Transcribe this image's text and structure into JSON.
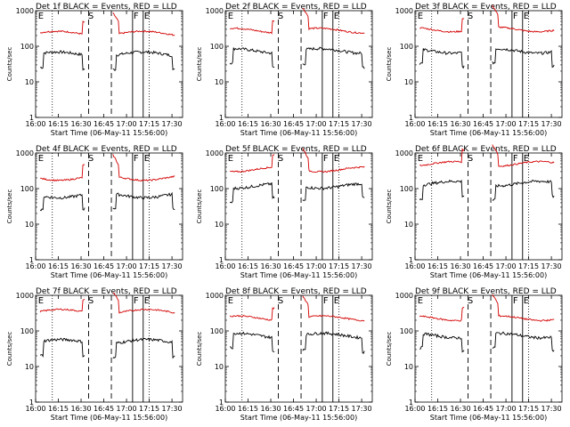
{
  "figure": {
    "start_time_label": "Start Time (06-May-11 15:56:00)",
    "ylabel": "Counts/sec"
  },
  "style": {
    "events_color": "#000000",
    "lld_color": "#d40000",
    "background": "#ffffff"
  },
  "chart_data": [
    {
      "type": "line",
      "title": "Det 1f BLACK = Events, RED = LLD",
      "xlabel": "Start Time (06-May-11 15:56:00)",
      "ylabel": "Counts/sec",
      "yscale": "log",
      "ylim": [
        1,
        1000
      ],
      "x_ticks": [
        "16:00",
        "16:15",
        "16:30",
        "16:45",
        "17:00",
        "17:15",
        "17:30"
      ],
      "y_ticks": [
        "1",
        "10",
        "100",
        "1000"
      ],
      "markers": [
        "E",
        "S",
        "F",
        "E"
      ],
      "series": [
        {
          "name": "Events",
          "level": 60
        },
        {
          "name": "LLD",
          "level": 230
        }
      ]
    },
    {
      "type": "line",
      "title": "Det 2f BLACK = Events, RED = LLD",
      "xlabel": "Start Time (06-May-11 15:56:00)",
      "ylabel": "Counts/sec",
      "yscale": "log",
      "ylim": [
        1,
        1000
      ],
      "x_ticks": [
        "16:00",
        "16:15",
        "16:30",
        "16:45",
        "17:00",
        "17:15",
        "17:30"
      ],
      "y_ticks": [
        "1",
        "10",
        "100",
        "1000"
      ],
      "markers": [
        "E",
        "S",
        "F",
        "E"
      ],
      "series": [
        {
          "name": "Events",
          "level": 75
        },
        {
          "name": "LLD",
          "level": 280
        }
      ]
    },
    {
      "type": "line",
      "title": "Det 3f BLACK = Events, RED = LLD",
      "xlabel": "Start Time (06-May-11 15:56:00)",
      "ylabel": "Counts/sec",
      "yscale": "log",
      "ylim": [
        1,
        1000
      ],
      "x_ticks": [
        "16:00",
        "16:15",
        "16:30",
        "16:45",
        "17:00",
        "17:15",
        "17:30"
      ],
      "y_ticks": [
        "1",
        "10",
        "100",
        "1000"
      ],
      "markers": [
        "E",
        "S",
        "F",
        "E"
      ],
      "series": [
        {
          "name": "Events",
          "level": 75
        },
        {
          "name": "LLD",
          "level": 300
        }
      ]
    },
    {
      "type": "line",
      "title": "Det 4f BLACK = Events, RED = LLD",
      "xlabel": "Start Time (06-May-11 15:56:00)",
      "ylabel": "Counts/sec",
      "yscale": "log",
      "ylim": [
        1,
        1000
      ],
      "x_ticks": [
        "16:00",
        "16:15",
        "16:30",
        "16:45",
        "17:00",
        "17:15",
        "17:30"
      ],
      "y_ticks": [
        "1",
        "10",
        "100",
        "1000"
      ],
      "markers": [
        "E",
        "S",
        "F",
        "E"
      ],
      "series": [
        {
          "name": "Events",
          "level": 65
        },
        {
          "name": "LLD",
          "level": 200
        }
      ]
    },
    {
      "type": "line",
      "title": "Det 5f BLACK = Events, RED = LLD",
      "xlabel": "Start Time (06-May-11 15:56:00)",
      "ylabel": "Counts/sec",
      "yscale": "log",
      "ylim": [
        1,
        1000
      ],
      "x_ticks": [
        "16:00",
        "16:15",
        "16:30",
        "16:45",
        "17:00",
        "17:15",
        "17:30"
      ],
      "y_ticks": [
        "1",
        "10",
        "100",
        "1000"
      ],
      "markers": [
        "E",
        "S",
        "F",
        "E"
      ],
      "series": [
        {
          "name": "Events",
          "level": 120
        },
        {
          "name": "LLD",
          "level": 350
        }
      ]
    },
    {
      "type": "line",
      "title": "Det 6f BLACK = Events, RED = LLD",
      "xlabel": "Start Time (06-May-11 15:56:00)",
      "ylabel": "Counts/sec",
      "yscale": "log",
      "ylim": [
        1,
        1000
      ],
      "x_ticks": [
        "16:00",
        "16:15",
        "16:30",
        "16:45",
        "17:00",
        "17:15",
        "17:30"
      ],
      "y_ticks": [
        "1",
        "10",
        "100",
        "1000"
      ],
      "markers": [
        "E",
        "S",
        "F",
        "E"
      ],
      "series": [
        {
          "name": "Events",
          "level": 140
        },
        {
          "name": "LLD",
          "level": 500
        }
      ]
    },
    {
      "type": "line",
      "title": "Det 7f BLACK = Events, RED = LLD",
      "xlabel": "Start Time (06-May-11 15:56:00)",
      "ylabel": "Counts/sec",
      "yscale": "log",
      "ylim": [
        1,
        1000
      ],
      "x_ticks": [
        "16:00",
        "16:15",
        "16:30",
        "16:45",
        "17:00",
        "17:15",
        "17:30"
      ],
      "y_ticks": [
        "1",
        "10",
        "100",
        "1000"
      ],
      "markers": [
        "E",
        "S",
        "F",
        "E"
      ],
      "series": [
        {
          "name": "Events",
          "level": 50
        },
        {
          "name": "LLD",
          "level": 350
        }
      ]
    },
    {
      "type": "line",
      "title": "Det 8f BLACK = Events, RED = LLD",
      "xlabel": "Start Time (06-May-11 15:56:00)",
      "ylabel": "Counts/sec",
      "yscale": "log",
      "ylim": [
        1,
        1000
      ],
      "x_ticks": [
        "16:00",
        "16:15",
        "16:30",
        "16:45",
        "17:00",
        "17:15",
        "17:30"
      ],
      "y_ticks": [
        "1",
        "10",
        "100",
        "1000"
      ],
      "markers": [
        "E",
        "S",
        "F",
        "E"
      ],
      "series": [
        {
          "name": "Events",
          "level": 75
        },
        {
          "name": "LLD",
          "level": 230
        }
      ]
    },
    {
      "type": "line",
      "title": "Det 9f BLACK = Events, RED = LLD",
      "xlabel": "Start Time (06-May-11 15:56:00)",
      "ylabel": "Counts/sec",
      "yscale": "log",
      "ylim": [
        1,
        1000
      ],
      "x_ticks": [
        "16:00",
        "16:15",
        "16:30",
        "16:45",
        "17:00",
        "17:15",
        "17:30"
      ],
      "y_ticks": [
        "1",
        "10",
        "100",
        "1000"
      ],
      "markers": [
        "E",
        "S",
        "F",
        "E"
      ],
      "series": [
        {
          "name": "Events",
          "level": 75
        },
        {
          "name": "LLD",
          "level": 230
        }
      ]
    }
  ]
}
